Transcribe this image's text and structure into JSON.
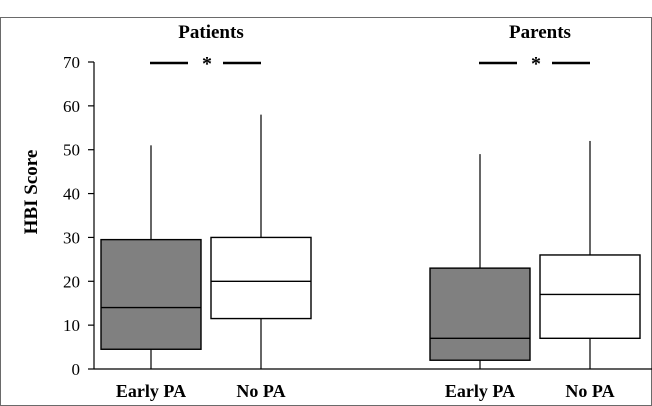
{
  "chart_data": {
    "type": "box",
    "ylabel": "HBI Score",
    "ylim": [
      0,
      70
    ],
    "yticks": [
      0,
      10,
      20,
      30,
      40,
      50,
      60,
      70
    ],
    "groups": [
      {
        "title": "Patients",
        "significance": "*",
        "boxes": [
          {
            "label": "Early PA",
            "min": 0,
            "q1": 4.5,
            "median": 14,
            "q3": 29.5,
            "max": 51,
            "color": "#808080"
          },
          {
            "label": "No PA",
            "min": 0,
            "q1": 11.5,
            "median": 20,
            "q3": 30,
            "max": 58,
            "color": "#ffffff"
          }
        ]
      },
      {
        "title": "Parents",
        "significance": "*",
        "boxes": [
          {
            "label": "Early PA",
            "min": 0,
            "q1": 2,
            "median": 7,
            "q3": 23,
            "max": 49,
            "color": "#808080"
          },
          {
            "label": "No PA",
            "min": 0,
            "q1": 7,
            "median": 17,
            "q3": 26,
            "max": 52,
            "color": "#ffffff"
          }
        ]
      }
    ]
  }
}
